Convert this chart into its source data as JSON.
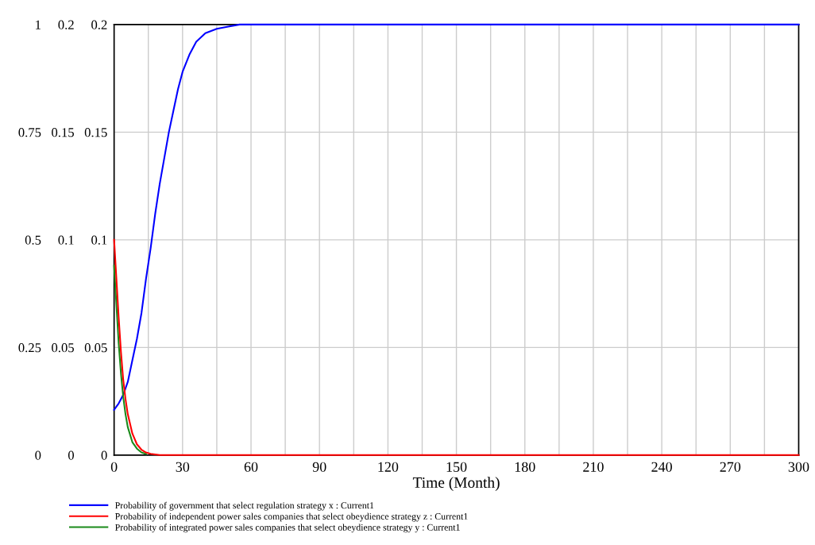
{
  "chart_data": {
    "type": "line",
    "xlabel": "Time (Month)",
    "xlim": [
      0,
      300
    ],
    "xticks": [
      0,
      {
        "value": 15,
        "label": null
      },
      30,
      {
        "value": 45,
        "label": null
      },
      60,
      {
        "value": 75,
        "label": null
      },
      90,
      {
        "value": 105,
        "label": null
      },
      120,
      {
        "value": 135,
        "label": null
      },
      150,
      {
        "value": 165,
        "label": null
      },
      180,
      {
        "value": 195,
        "label": null
      },
      210,
      {
        "value": 225,
        "label": null
      },
      240,
      {
        "value": 255,
        "label": null
      },
      270,
      {
        "value": 285,
        "label": null
      },
      300
    ],
    "ylim": [
      0,
      1
    ],
    "yticks": [
      0,
      0.25,
      0.5,
      0.75,
      1
    ],
    "y2lim": [
      0,
      0.2
    ],
    "y2ticks": [
      0,
      0.05,
      0.1,
      0.15,
      0.2
    ],
    "y3lim": [
      0,
      0.2
    ],
    "y3ticks": [
      0,
      0.05,
      0.1,
      0.15,
      0.2
    ],
    "grid": true,
    "legend": "bottom",
    "line_style": "solid",
    "marker": "none",
    "series": [
      {
        "name": "Probability of government that select regulation strategy x : Current1",
        "color": "#0000ff",
        "x": [
          0,
          2,
          4,
          6,
          8,
          10,
          12,
          14,
          16,
          18,
          20,
          22,
          24,
          26,
          28,
          30,
          33,
          36,
          40,
          45,
          50,
          55,
          60,
          100,
          200,
          300
        ],
        "values": [
          0.105,
          0.12,
          0.14,
          0.17,
          0.22,
          0.27,
          0.33,
          0.41,
          0.48,
          0.56,
          0.63,
          0.69,
          0.75,
          0.8,
          0.85,
          0.89,
          0.93,
          0.96,
          0.98,
          0.99,
          0.995,
          1,
          1,
          1,
          1,
          1
        ]
      },
      {
        "name": "Probability of independent power sales companies that select obeydience strategy z : Current1",
        "color": "#ff0000",
        "axis": "y3",
        "x": [
          0,
          1,
          2,
          3,
          4,
          5,
          6,
          8,
          10,
          12,
          14,
          16,
          18,
          20,
          30,
          100,
          200,
          300
        ],
        "values": [
          0.1,
          0.082,
          0.064,
          0.048,
          0.035,
          0.026,
          0.019,
          0.01,
          0.005,
          0.0025,
          0.0012,
          0.0006,
          0.0003,
          0,
          0,
          0,
          0,
          0
        ]
      },
      {
        "name": "Probability of integrated power sales companies that select obeydience strategy y : Current1",
        "color": "#1a8a1a",
        "axis": "y2",
        "x": [
          0,
          1,
          2,
          3,
          4,
          5,
          6,
          8,
          10,
          12,
          14
        ],
        "values": [
          0.088,
          0.07,
          0.052,
          0.038,
          0.027,
          0.019,
          0.013,
          0.006,
          0.003,
          0.0012,
          0.0005
        ]
      }
    ]
  }
}
